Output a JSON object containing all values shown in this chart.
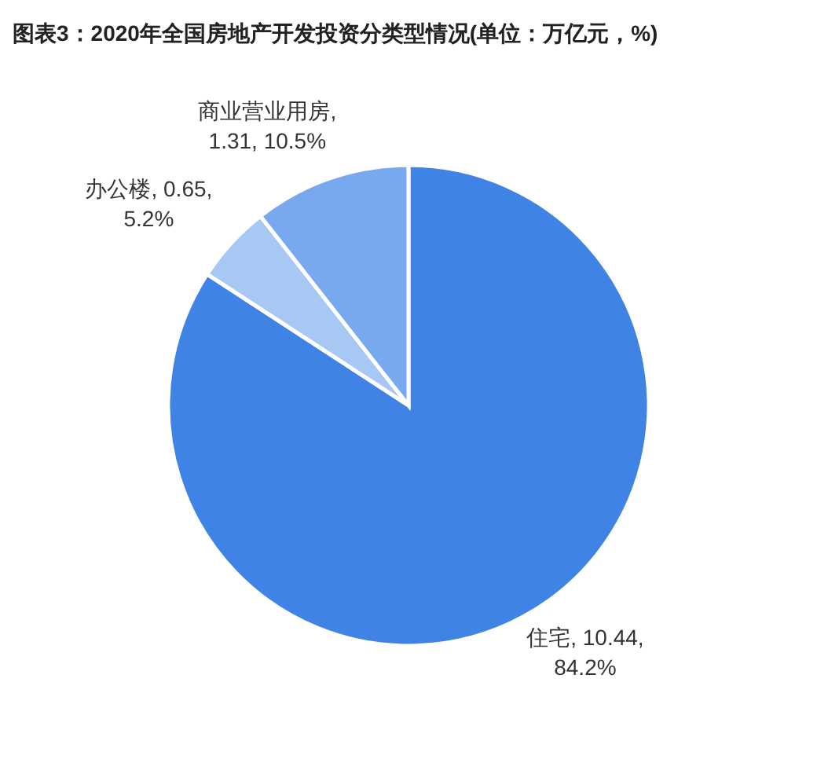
{
  "chart_data": {
    "type": "pie",
    "title": "图表3：2020年全国房地产开发投资分类型情况(单位：万亿元，%)",
    "categories": [
      "住宅",
      "办公楼",
      "商业营业用房"
    ],
    "values": [
      10.44,
      0.65,
      1.31
    ],
    "colors": [
      "#3f83e4",
      "#a8c8f4",
      "#78a8ee"
    ],
    "value_labels": [
      ", 10.44, 84.2%",
      ", 0.65, 5.2%",
      ", 1.31, 10.5%"
    ]
  }
}
